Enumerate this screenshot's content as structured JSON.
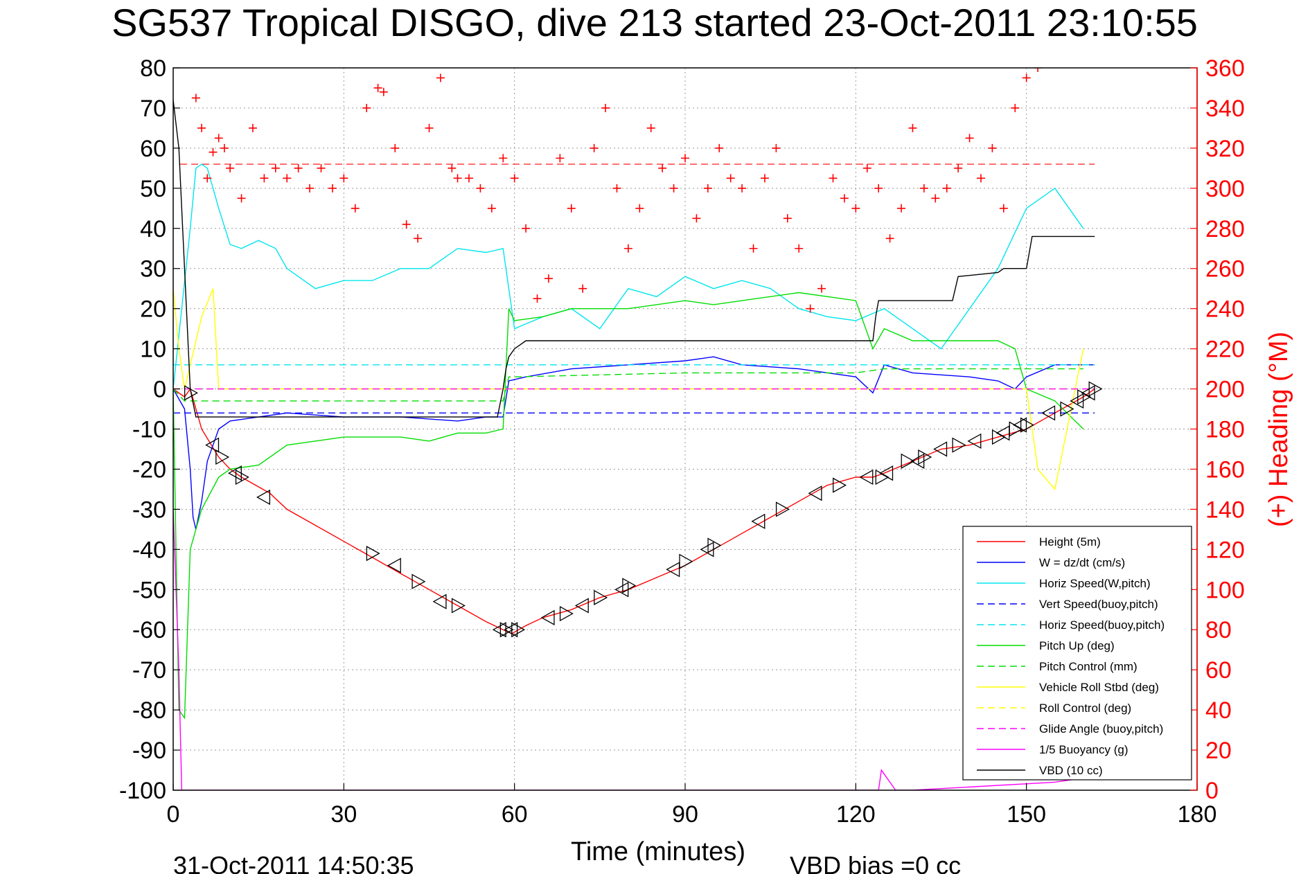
{
  "chart_data": {
    "type": "line",
    "title": "SG537 Tropical DISGO, dive 213 started 23-Oct-2011 23:10:55",
    "xlabel": "Time (minutes)",
    "ylabel": "",
    "y2label": "(+) Heading (°M)",
    "xlim": [
      0,
      180
    ],
    "ylim": [
      -100,
      80
    ],
    "y2lim": [
      0,
      360
    ],
    "xticks": [
      "0",
      "30",
      "60",
      "90",
      "120",
      "150",
      "180"
    ],
    "yticks": [
      "80",
      "70",
      "60",
      "50",
      "40",
      "30",
      "20",
      "10",
      "0",
      "-10",
      "-20",
      "-30",
      "-40",
      "-50",
      "-60",
      "-70",
      "-80",
      "-90",
      "-100"
    ],
    "y2ticks": [
      "360",
      "340",
      "320",
      "300",
      "280",
      "260",
      "240",
      "220",
      "200",
      "180",
      "160",
      "140",
      "120",
      "100",
      "80",
      "60",
      "40",
      "20",
      "0"
    ],
    "grid": true,
    "legend_position": "bottom-right",
    "footer_left": "31-Oct-2011 14:50:35",
    "footer_right": "VBD bias =0 cc",
    "heading_target": 312,
    "colors": {
      "heading": "#ff0000",
      "axis_right": "#ff0000",
      "height": "#ff0000",
      "w": "#0000ff",
      "horiz_w": "#00e5ee",
      "pitch": "#00dd00",
      "roll": "#ffff00",
      "glide": "#ff00ff",
      "vbd": "#000000"
    },
    "series": [
      {
        "name": "Height (5m)",
        "color": "#ff0000",
        "style": "solid",
        "x": [
          0,
          2,
          3,
          5,
          8,
          10,
          12,
          17,
          20,
          30,
          35,
          40,
          45,
          50,
          55,
          58,
          59.5,
          62,
          65,
          70,
          75,
          80,
          85,
          90,
          95,
          100,
          105,
          110,
          115,
          120,
          123,
          125,
          130,
          135,
          140,
          145,
          150,
          155,
          160,
          162
        ],
        "y": [
          0,
          -2,
          0,
          -10,
          -17,
          -20,
          -22,
          -26,
          -30,
          -38,
          -42,
          -46,
          -50,
          -54,
          -58,
          -60,
          -61,
          -59,
          -57,
          -55,
          -52,
          -50,
          -47,
          -44,
          -40,
          -36,
          -32,
          -28,
          -24,
          -22,
          -22,
          -21,
          -18,
          -15,
          -14,
          -12,
          -10,
          -6,
          -2,
          0
        ]
      },
      {
        "name": "W = dz/dt (cm/s)",
        "color": "#0000ff",
        "style": "solid",
        "x": [
          0,
          2,
          3,
          3.5,
          4,
          5,
          6,
          8,
          10,
          15,
          20,
          30,
          40,
          50,
          55,
          58,
          59,
          62,
          70,
          80,
          90,
          95,
          100,
          110,
          120,
          123,
          125,
          130,
          140,
          145,
          148,
          150,
          155,
          160,
          162
        ],
        "y": [
          0,
          -5,
          -20,
          -32,
          -35,
          -28,
          -18,
          -10,
          -8,
          -7,
          -6,
          -7,
          -7,
          -8,
          -7,
          -7,
          2,
          3,
          5,
          6,
          7,
          8,
          6,
          5,
          3,
          -1,
          6,
          4,
          3,
          2,
          0,
          3,
          6,
          6,
          6
        ]
      },
      {
        "name": "Horiz Speed(W,pitch)",
        "color": "#00e5ee",
        "style": "solid",
        "x": [
          0,
          3,
          4,
          5,
          6,
          8,
          10,
          12,
          15,
          18,
          20,
          25,
          30,
          35,
          40,
          45,
          48,
          50,
          55,
          58,
          60,
          65,
          70,
          75,
          80,
          85,
          90,
          95,
          100,
          105,
          110,
          115,
          120,
          125,
          130,
          135,
          140,
          145,
          150,
          155,
          160
        ],
        "y": [
          0,
          40,
          55,
          56,
          55,
          45,
          36,
          35,
          37,
          35,
          30,
          25,
          27,
          27,
          30,
          30,
          33,
          35,
          34,
          35,
          15,
          18,
          20,
          15,
          25,
          23,
          28,
          25,
          27,
          25,
          20,
          18,
          17,
          20,
          15,
          10,
          20,
          30,
          45,
          50,
          40
        ]
      },
      {
        "name": "Vert Speed(buoy,pitch)",
        "color": "#0000ff",
        "style": "dash",
        "x": [
          0,
          60,
          162
        ],
        "y": [
          -6,
          -6,
          -6
        ]
      },
      {
        "name": "Horiz Speed(buoy,pitch)",
        "color": "#00e5ee",
        "style": "dash",
        "x": [
          0,
          60,
          162
        ],
        "y": [
          6,
          6,
          6
        ]
      },
      {
        "name": "Pitch Up (deg)",
        "color": "#00dd00",
        "style": "solid",
        "x": [
          0,
          1,
          2,
          3,
          4,
          5,
          8,
          10,
          15,
          20,
          30,
          40,
          45,
          50,
          55,
          58,
          59,
          60,
          65,
          70,
          80,
          90,
          95,
          100,
          110,
          120,
          123,
          125,
          130,
          140,
          145,
          148,
          150,
          155,
          160
        ],
        "y": [
          0,
          -80,
          -82,
          -40,
          -35,
          -30,
          -22,
          -20,
          -19,
          -14,
          -12,
          -12,
          -13,
          -11,
          -11,
          -10,
          20,
          17,
          18,
          20,
          20,
          22,
          21,
          22,
          24,
          22,
          10,
          15,
          12,
          12,
          12,
          10,
          0,
          -3,
          -10
        ]
      },
      {
        "name": "Pitch Control (mm)",
        "color": "#00dd00",
        "style": "dash",
        "x": [
          0,
          2,
          10,
          40,
          55,
          58,
          59,
          60,
          90,
          120,
          125,
          150,
          160
        ],
        "y": [
          0,
          -3,
          -3,
          -3,
          -3,
          -3,
          3,
          3,
          4,
          4,
          5,
          5,
          5
        ]
      },
      {
        "name": "Vehicle Roll Stbd (deg)",
        "color": "#ffff00",
        "style": "solid",
        "x": [
          0,
          1,
          2,
          5,
          7,
          8,
          9,
          10,
          12,
          14,
          16,
          20,
          60,
          90,
          120,
          150,
          152,
          155,
          160
        ],
        "y": [
          25,
          10,
          0,
          18,
          25,
          0,
          0,
          0,
          0,
          0,
          0,
          0,
          0,
          0,
          0,
          0,
          -20,
          -25,
          10
        ]
      },
      {
        "name": "Roll Control (deg)",
        "color": "#ffff00",
        "style": "dash",
        "x": [
          0,
          10,
          60,
          90,
          120,
          150,
          160
        ],
        "y": [
          0,
          0,
          0,
          0,
          0,
          0,
          0
        ]
      },
      {
        "name": "Glide Angle (buoy,pitch)",
        "color": "#ff00ff",
        "style": "dash",
        "x": [
          0,
          60,
          162
        ],
        "y": [
          0,
          0,
          0
        ]
      },
      {
        "name": "1/5 Buoyancy (g)",
        "color": "#ff00ff",
        "style": "solid",
        "x": [
          0,
          1,
          1.5,
          2,
          124,
          124.5,
          125,
          126,
          127,
          130,
          155,
          160
        ],
        "y": [
          -30,
          -70,
          -100,
          -100,
          -100,
          -95,
          -96,
          -98,
          -100,
          -100,
          -98,
          -97
        ]
      },
      {
        "name": "VBD (10 cc)",
        "color": "#000000",
        "style": "solid",
        "x": [
          0,
          1,
          2,
          3,
          4,
          57,
          58,
          58.5,
          59,
          60,
          61,
          62,
          123,
          123.5,
          124,
          137,
          138,
          145,
          146,
          150,
          151,
          162
        ],
        "y": [
          72,
          60,
          30,
          0,
          -7,
          -7,
          0,
          5,
          8,
          10,
          11,
          12,
          12,
          18,
          22,
          22,
          28,
          29,
          30,
          30,
          38,
          38
        ]
      },
      {
        "name": "(+) Heading",
        "color": "#ff0000",
        "style": "marker-plus",
        "axis": "right",
        "x": [
          4,
          5,
          6,
          7,
          8,
          9,
          10,
          12,
          14,
          16,
          18,
          20,
          22,
          24,
          26,
          28,
          30,
          32,
          34,
          36,
          37,
          39,
          41,
          43,
          45,
          47,
          49,
          50,
          52,
          54,
          56,
          58,
          60,
          62,
          64,
          66,
          68,
          70,
          72,
          74,
          76,
          78,
          80,
          82,
          84,
          86,
          88,
          90,
          92,
          94,
          96,
          98,
          100,
          102,
          104,
          106,
          108,
          110,
          112,
          114,
          116,
          118,
          120,
          122,
          124,
          126,
          128,
          130,
          132,
          134,
          136,
          138,
          140,
          142,
          144,
          146,
          148,
          150,
          152
        ],
        "y": [
          345,
          330,
          305,
          318,
          325,
          320,
          310,
          295,
          330,
          305,
          310,
          305,
          310,
          300,
          310,
          300,
          305,
          290,
          340,
          350,
          348,
          320,
          282,
          275,
          330,
          355,
          310,
          305,
          305,
          300,
          290,
          315,
          305,
          280,
          245,
          255,
          315,
          290,
          250,
          320,
          340,
          300,
          270,
          290,
          330,
          310,
          300,
          315,
          285,
          300,
          320,
          305,
          300,
          270,
          305,
          320,
          285,
          270,
          240,
          250,
          305,
          295,
          290,
          310,
          300,
          275,
          290,
          330,
          300,
          295,
          300,
          310,
          325,
          305,
          320,
          290,
          340,
          355,
          360
        ]
      }
    ],
    "markers": {
      "name": "pitch/time markers",
      "x": [
        3,
        7,
        8.5,
        11,
        12,
        16,
        35,
        39,
        43,
        47,
        50,
        57.5,
        58.5,
        59.5,
        60.5,
        66,
        69,
        72,
        75,
        79,
        80,
        88,
        90,
        94,
        95,
        103,
        107,
        113,
        117,
        122,
        124.5,
        125.5,
        129,
        131,
        132,
        135,
        138,
        141,
        145,
        146,
        148,
        149,
        150,
        154,
        157,
        159,
        160,
        161,
        162
      ],
      "y": [
        -1,
        -14,
        -17,
        -21,
        -22,
        -27,
        -41,
        -44,
        -48,
        -53,
        -54,
        -60,
        -60,
        -60,
        -60,
        -57,
        -56,
        -54,
        -52,
        -50,
        -49,
        -45,
        -43,
        -40,
        -39,
        -33,
        -30,
        -26,
        -24,
        -22,
        -22,
        -21,
        -18,
        -18,
        -17,
        -15,
        -14,
        -13,
        -12,
        -11,
        -10,
        -9,
        -9,
        -6,
        -5,
        -3,
        -2,
        -1,
        0
      ]
    }
  }
}
